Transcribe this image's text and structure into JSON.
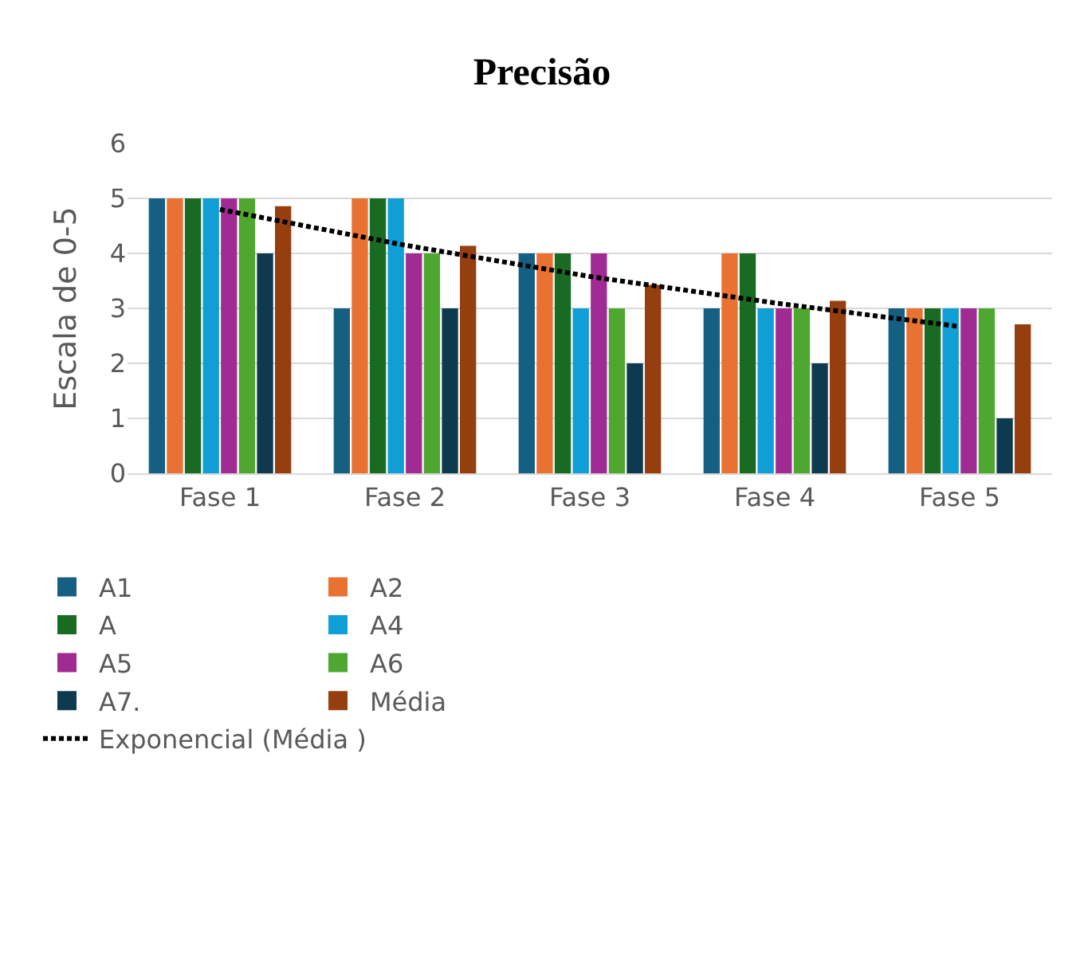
{
  "chart_data": {
    "type": "bar",
    "title": "Precisão",
    "ylabel": "Escala de 0-5",
    "categories": [
      "Fase 1",
      "Fase 2",
      "Fase 3",
      "Fase 4",
      "Fase 5"
    ],
    "series": [
      {
        "name": "A1",
        "color": "#156082",
        "values": [
          5,
          3,
          4,
          3,
          3
        ]
      },
      {
        "name": "A2",
        "color": "#e97132",
        "values": [
          5,
          5,
          4,
          4,
          3
        ]
      },
      {
        "name": "A",
        "color": "#196b24",
        "values": [
          5,
          5,
          4,
          4,
          3
        ]
      },
      {
        "name": "A4",
        "color": "#0f9ed5",
        "values": [
          5,
          5,
          3,
          3,
          3
        ]
      },
      {
        "name": "A5",
        "color": "#a02b93",
        "values": [
          5,
          4,
          4,
          3,
          3
        ]
      },
      {
        "name": "A6",
        "color": "#4ea72e",
        "values": [
          5,
          4,
          3,
          3,
          3
        ]
      },
      {
        "name": "A7.",
        "color": "#0e3a4f",
        "values": [
          4,
          3,
          2,
          2,
          1
        ]
      },
      {
        "name": "Média",
        "color": "#953f0f",
        "values": [
          4.86,
          4.14,
          3.43,
          3.14,
          2.71
        ]
      },
      {
        "name": "Exponencial (Média )",
        "type": "line",
        "color": "#000000",
        "line_style": "dotted",
        "marker": "none",
        "values": [
          4.8,
          4.15,
          3.58,
          3.1,
          2.67
        ]
      }
    ],
    "ylim": [
      0,
      6
    ],
    "yticks": [
      0,
      1,
      2,
      3,
      4,
      5,
      6
    ],
    "grid": "y",
    "legend": "bottom"
  }
}
